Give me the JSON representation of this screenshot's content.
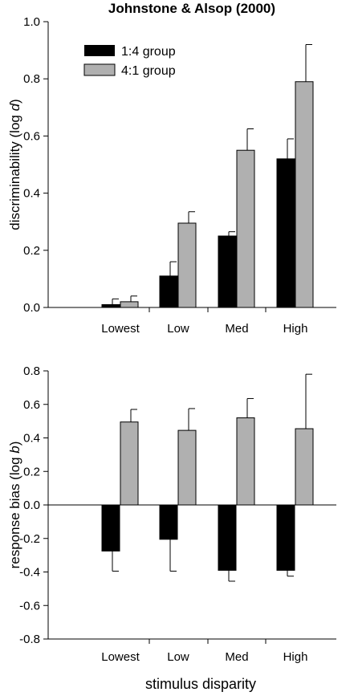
{
  "title": "Johnstone & Alsop (2000)",
  "xlabel": "stimulus disparity",
  "legend": [
    "1:4 group",
    "4:1 group"
  ],
  "colors": {
    "group_1_4": "#000000",
    "group_4_1": "#b0b0b0"
  },
  "chart_data": [
    {
      "type": "bar",
      "ylabel_prefix": "discriminability (log ",
      "ylabel_var": "d",
      "ylabel_suffix": ")",
      "ylim": [
        0,
        1.0
      ],
      "yticks": [
        "0.0",
        "0.2",
        "0.4",
        "0.6",
        "0.8",
        "1.0"
      ],
      "categories": [
        "Lowest",
        "Low",
        "Med",
        "High"
      ],
      "series": [
        {
          "name": "1:4 group",
          "values": [
            0.01,
            0.11,
            0.25,
            0.52
          ],
          "errors": [
            0.02,
            0.05,
            0.015,
            0.07
          ]
        },
        {
          "name": "4:1 group",
          "values": [
            0.02,
            0.295,
            0.55,
            0.79
          ],
          "errors": [
            0.02,
            0.04,
            0.075,
            0.13
          ]
        }
      ]
    },
    {
      "type": "bar",
      "ylabel_prefix": "response bias (log ",
      "ylabel_var": "b",
      "ylabel_suffix": ")",
      "ylim": [
        -0.8,
        0.8
      ],
      "yticks": [
        "-0.8",
        "-0.6",
        "-0.4",
        "-0.2",
        "0.0",
        "0.2",
        "0.4",
        "0.6",
        "0.8"
      ],
      "categories": [
        "Lowest",
        "Low",
        "Med",
        "High"
      ],
      "series": [
        {
          "name": "1:4 group",
          "values": [
            -0.275,
            -0.205,
            -0.39,
            -0.39
          ],
          "errors": [
            0.12,
            0.19,
            0.065,
            0.035
          ]
        },
        {
          "name": "4:1 group",
          "values": [
            0.495,
            0.445,
            0.52,
            0.455
          ],
          "errors": [
            0.075,
            0.13,
            0.115,
            0.325
          ]
        }
      ]
    }
  ]
}
